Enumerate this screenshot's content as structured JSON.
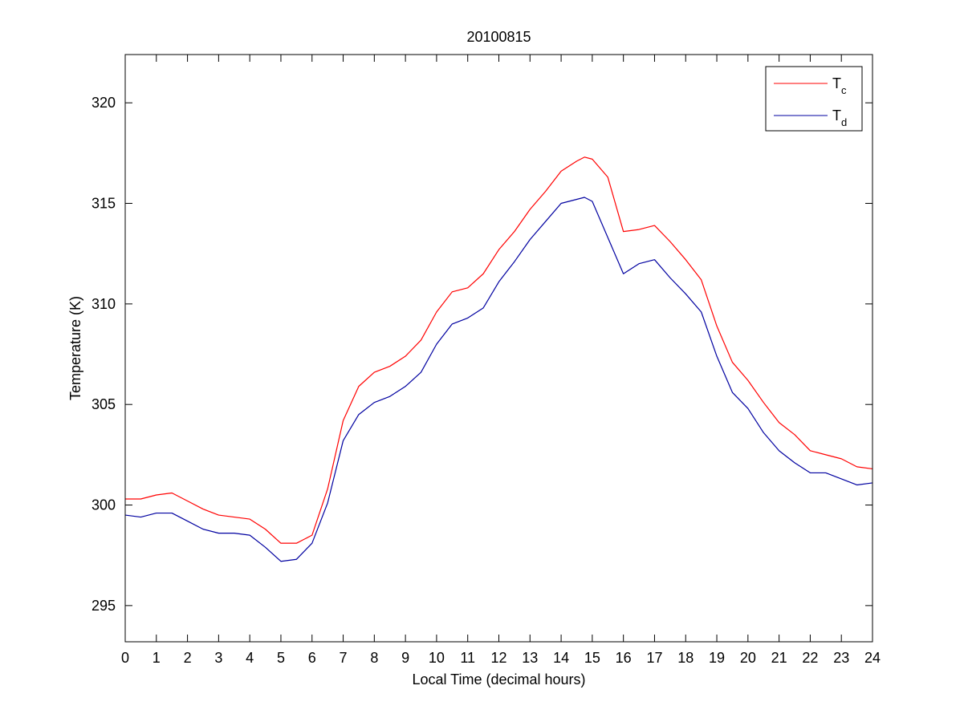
{
  "chart_data": {
    "type": "line",
    "title": "20100815",
    "xlabel": "Local Time (decimal hours)",
    "ylabel": "Temperature (K)",
    "xlim": [
      0,
      24
    ],
    "ylim": [
      293.2,
      322.4
    ],
    "xticks": [
      0,
      1,
      2,
      3,
      4,
      5,
      6,
      7,
      8,
      9,
      10,
      11,
      12,
      13,
      14,
      15,
      16,
      17,
      18,
      19,
      20,
      21,
      22,
      23,
      24
    ],
    "yticks": [
      295,
      300,
      305,
      310,
      315,
      320
    ],
    "grid": false,
    "legend_position": "top-right",
    "series": [
      {
        "name": "T",
        "subscript": "c",
        "color": "#ff0000",
        "x": [
          0,
          0.5,
          1,
          1.5,
          2,
          2.5,
          3,
          3.5,
          4,
          4.5,
          5,
          5.5,
          6,
          6.5,
          7,
          7.5,
          8,
          8.5,
          9,
          9.5,
          10,
          10.5,
          11,
          11.5,
          12,
          12.5,
          13,
          13.5,
          14,
          14.5,
          14.75,
          15,
          15.5,
          16,
          16.5,
          17,
          17.5,
          18,
          18.5,
          19,
          19.5,
          20,
          20.5,
          21,
          21.5,
          22,
          22.5,
          23,
          23.5,
          24
        ],
        "y": [
          300.3,
          300.3,
          300.5,
          300.6,
          300.2,
          299.8,
          299.5,
          299.4,
          299.3,
          298.8,
          298.1,
          298.1,
          298.5,
          300.8,
          304.2,
          305.9,
          306.6,
          306.9,
          307.4,
          308.2,
          309.6,
          310.6,
          310.8,
          311.5,
          312.7,
          313.6,
          314.7,
          315.6,
          316.6,
          317.1,
          317.3,
          317.2,
          316.3,
          313.6,
          313.7,
          313.9,
          313.1,
          312.2,
          311.2,
          308.9,
          307.1,
          306.2,
          305.1,
          304.1,
          303.5,
          302.7,
          302.5,
          302.3,
          301.9,
          301.8
        ]
      },
      {
        "name": "T",
        "subscript": "d",
        "color": "#0000a0",
        "x": [
          0,
          0.5,
          1,
          1.5,
          2,
          2.5,
          3,
          3.5,
          4,
          4.5,
          5,
          5.5,
          6,
          6.5,
          7,
          7.5,
          8,
          8.5,
          9,
          9.5,
          10,
          10.5,
          11,
          11.5,
          12,
          12.5,
          13,
          13.5,
          14,
          14.5,
          14.75,
          15,
          15.5,
          16,
          16.5,
          17,
          17.5,
          18,
          18.5,
          19,
          19.5,
          20,
          20.5,
          21,
          21.5,
          22,
          22.5,
          23,
          23.5,
          24
        ],
        "y": [
          299.5,
          299.4,
          299.6,
          299.6,
          299.2,
          298.8,
          298.6,
          298.6,
          298.5,
          297.9,
          297.2,
          297.3,
          298.1,
          300.1,
          303.2,
          304.5,
          305.1,
          305.4,
          305.9,
          306.6,
          308.0,
          309.0,
          309.3,
          309.8,
          311.1,
          312.1,
          313.2,
          314.1,
          315.0,
          315.2,
          315.3,
          315.1,
          313.3,
          311.5,
          312.0,
          312.2,
          311.3,
          310.5,
          309.6,
          307.4,
          305.6,
          304.8,
          303.6,
          302.7,
          302.1,
          301.6,
          301.6,
          301.3,
          301.0,
          301.1
        ]
      }
    ]
  }
}
